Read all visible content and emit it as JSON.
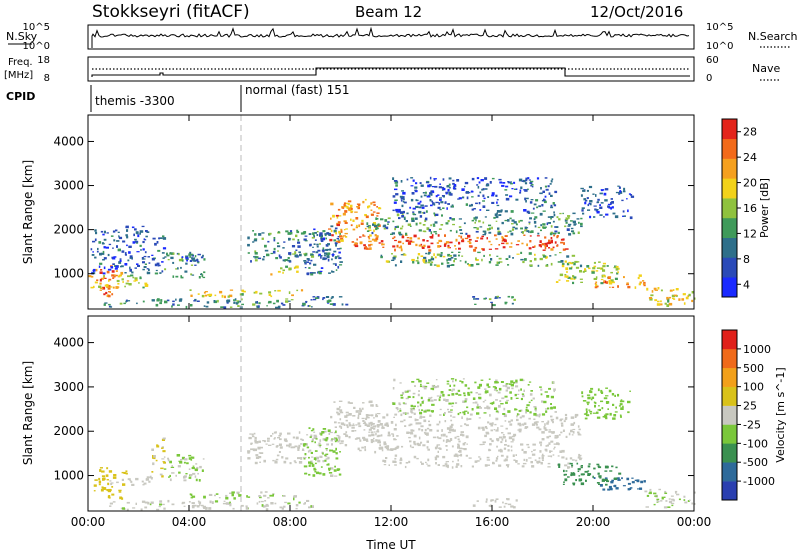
{
  "header": {
    "station": "Stokkseyri (fitACF)",
    "beam": "Beam 12",
    "date": "12/Oct/2016"
  },
  "panels": {
    "nsky": {
      "left_label": "N.Sky",
      "right_label": "N.Search",
      "left_ticks": [
        "10^5",
        "10^0"
      ],
      "right_ticks": [
        "10^5",
        "10^0"
      ]
    },
    "freq": {
      "left_label_1": "Freq.",
      "left_label_2": "[MHz]",
      "right_label": "Nave",
      "left_ticks": [
        "18",
        "8"
      ],
      "right_ticks": [
        "60",
        "0"
      ]
    },
    "cpid": {
      "label": "CPID",
      "modes": [
        {
          "name": "themis -3300",
          "start_hour": 0
        },
        {
          "name": "normal (fast) 151",
          "start_hour": 6
        }
      ]
    }
  },
  "colors": {
    "power_scale": [
      "#1a2aff",
      "#2a4ab8",
      "#2e6f8a",
      "#3f9a5a",
      "#8fc23e",
      "#f2d21a",
      "#f5a01f",
      "#f26a1a",
      "#e3241b"
    ],
    "velocity_scale": [
      "#2a3fb0",
      "#2e6a9a",
      "#3a9050",
      "#7ac73a",
      "#c8c8c0",
      "#d9c21a",
      "#f2a01a",
      "#f06a1a",
      "#e0201a"
    ],
    "ground_scatter": "#c8c8c0"
  },
  "chart_data": [
    {
      "type": "heatmap",
      "title": "",
      "ylabel": "Slant Range [km]",
      "xlabel": "",
      "xlim": [
        0,
        24
      ],
      "ylim": [
        200,
        4600
      ],
      "yticks": [
        "1000",
        "2000",
        "3000",
        "4000"
      ],
      "colorbar": {
        "label": "Power [dB]",
        "ticks": [
          "28",
          "24",
          "20",
          "16",
          "12",
          "8",
          "4"
        ],
        "range": [
          0,
          30
        ]
      },
      "bands": [
        {
          "t0": 0.2,
          "t1": 1.3,
          "r0": 500,
          "r1": 1200,
          "value": 24
        },
        {
          "t0": 0.0,
          "t1": 2.3,
          "r0": 700,
          "r1": 1000,
          "value": 17
        },
        {
          "t0": 0.1,
          "t1": 2.4,
          "r0": 1000,
          "r1": 2100,
          "value": 6
        },
        {
          "t0": 2.5,
          "t1": 3.0,
          "r0": 1000,
          "r1": 1900,
          "value": 7
        },
        {
          "t0": 3.0,
          "t1": 4.6,
          "r0": 900,
          "r1": 1500,
          "value": 9
        },
        {
          "t0": 3.5,
          "t1": 4.3,
          "r0": 1300,
          "r1": 1400,
          "value": 5
        },
        {
          "t0": 4.0,
          "t1": 8.5,
          "r0": 500,
          "r1": 650,
          "value": 18
        },
        {
          "t0": 0.5,
          "t1": 9.0,
          "r0": 250,
          "r1": 450,
          "value": 10
        },
        {
          "t0": 6.3,
          "t1": 9.5,
          "r0": 1300,
          "r1": 2000,
          "value": 9
        },
        {
          "t0": 7.2,
          "t1": 8.3,
          "r0": 1000,
          "r1": 1200,
          "value": 16
        },
        {
          "t0": 8.5,
          "t1": 10.0,
          "r0": 1000,
          "r1": 2100,
          "value": 8
        },
        {
          "t0": 9.5,
          "t1": 11.5,
          "r0": 1700,
          "r1": 2700,
          "value": 22
        },
        {
          "t0": 10.5,
          "t1": 19.0,
          "r0": 1550,
          "r1": 1900,
          "value": 26
        },
        {
          "t0": 11.0,
          "t1": 19.5,
          "r0": 1900,
          "r1": 2400,
          "value": 11
        },
        {
          "t0": 11.5,
          "t1": 19.5,
          "r0": 1200,
          "r1": 1500,
          "value": 13
        },
        {
          "t0": 12.0,
          "t1": 18.5,
          "r0": 2400,
          "r1": 3200,
          "value": 6
        },
        {
          "t0": 17.8,
          "t1": 18.6,
          "r0": 1600,
          "r1": 1900,
          "value": 29
        },
        {
          "t0": 18.5,
          "t1": 21.0,
          "r0": 800,
          "r1": 1300,
          "value": 15
        },
        {
          "t0": 20.0,
          "t1": 22.0,
          "r0": 700,
          "r1": 1000,
          "value": 22
        },
        {
          "t0": 22.0,
          "t1": 24.0,
          "r0": 300,
          "r1": 700,
          "value": 18
        },
        {
          "t0": 19.5,
          "t1": 21.5,
          "r0": 2300,
          "r1": 3000,
          "value": 5
        },
        {
          "t0": 15.0,
          "t1": 17.0,
          "r0": 300,
          "r1": 500,
          "value": 9
        },
        {
          "t0": 8.8,
          "t1": 10.2,
          "r0": 250,
          "r1": 500,
          "value": 7
        }
      ]
    },
    {
      "type": "heatmap",
      "title": "",
      "ylabel": "Slant Range [km]",
      "xlabel": "Time UT",
      "xlim": [
        0,
        24
      ],
      "ylim": [
        200,
        4600
      ],
      "xticks": [
        "00:00",
        "04:00",
        "08:00",
        "12:00",
        "16:00",
        "20:00",
        "00:00"
      ],
      "yticks": [
        "1000",
        "2000",
        "3000",
        "4000"
      ],
      "colorbar": {
        "label": "Velocity [m s^-1]",
        "ticks": [
          "1000",
          "500",
          "100",
          "25",
          "-25",
          "-100",
          "-500",
          "-1000"
        ],
        "range": [
          -1200,
          1200
        ]
      },
      "bands": [
        {
          "t0": 0.2,
          "t1": 1.5,
          "r0": 500,
          "r1": 1200,
          "value": 300
        },
        {
          "t0": 0.5,
          "t1": 2.5,
          "r0": 800,
          "r1": 1000,
          "value": 0
        },
        {
          "t0": 2.5,
          "t1": 3.0,
          "r0": 1000,
          "r1": 1900,
          "value": 150
        },
        {
          "t0": 3.0,
          "t1": 4.6,
          "r0": 900,
          "r1": 1500,
          "value": -150
        },
        {
          "t0": 4.0,
          "t1": 8.5,
          "r0": 500,
          "r1": 650,
          "value": -120
        },
        {
          "t0": 0.5,
          "t1": 9.0,
          "r0": 250,
          "r1": 450,
          "value": -60
        },
        {
          "t0": 6.3,
          "t1": 9.5,
          "r0": 1300,
          "r1": 2000,
          "value": 0
        },
        {
          "t0": 8.5,
          "t1": 10.0,
          "r0": 1000,
          "r1": 2100,
          "value": -200
        },
        {
          "t0": 9.5,
          "t1": 11.5,
          "r0": 1700,
          "r1": 2700,
          "value": 0
        },
        {
          "t0": 10.5,
          "t1": 19.0,
          "r0": 1550,
          "r1": 1900,
          "value": 0
        },
        {
          "t0": 11.0,
          "t1": 19.5,
          "r0": 1900,
          "r1": 2400,
          "value": 0
        },
        {
          "t0": 11.5,
          "t1": 19.5,
          "r0": 1200,
          "r1": 1500,
          "value": 0
        },
        {
          "t0": 12.0,
          "t1": 18.5,
          "r0": 2400,
          "r1": 3200,
          "value": -150
        },
        {
          "t0": 18.5,
          "t1": 21.0,
          "r0": 800,
          "r1": 1300,
          "value": -500
        },
        {
          "t0": 20.0,
          "t1": 22.0,
          "r0": 700,
          "r1": 1000,
          "value": -800
        },
        {
          "t0": 22.0,
          "t1": 24.0,
          "r0": 300,
          "r1": 700,
          "value": -100
        },
        {
          "t0": 19.5,
          "t1": 21.5,
          "r0": 2300,
          "r1": 3000,
          "value": -300
        },
        {
          "t0": 15.0,
          "t1": 17.0,
          "r0": 300,
          "r1": 500,
          "value": 0
        }
      ]
    }
  ]
}
